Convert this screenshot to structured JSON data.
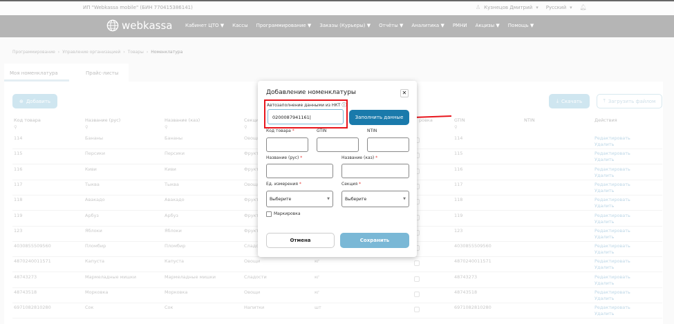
{
  "topbar": {
    "org": "ИП \"Webkassa mobile\" (БИН 770415386141)",
    "user": "Кузнецов Дмитрий",
    "language": "Русский"
  },
  "nav": {
    "logo": "webkassa",
    "items": [
      "Кабинет ЦТО ▼",
      "Кассы",
      "Программирование ▼",
      "Заказы (Курьеры) ▼",
      "Отчёты ▼",
      "Аналитика ▼",
      "РМНИ",
      "Акцизы ▼",
      "Помощь ▼"
    ]
  },
  "breadcrumb": [
    "Программирование",
    "Управление организацией",
    "Товары",
    "Номенклатура"
  ],
  "tabs": [
    "Моя номенклатура",
    "Прайс-листы"
  ],
  "toolbar": {
    "add": "Добавить",
    "download": "Скачать",
    "upload": "Загрузить файлом"
  },
  "table": {
    "headers": [
      "Код товара",
      "Название (рус)",
      "Название (каз)",
      "Секция",
      "ровка",
      "GTIN",
      "NTIN",
      "Действия"
    ],
    "edit": "Редактировать",
    "delete": "Удалить",
    "rows": [
      {
        "code": "114",
        "ru": "Бананы",
        "kz": "Бананы",
        "section": "Овощи",
        "unit": "",
        "gtin": "114"
      },
      {
        "code": "115",
        "ru": "Персики",
        "kz": "Персики",
        "section": "Фрукты",
        "unit": "",
        "gtin": "115"
      },
      {
        "code": "116",
        "ru": "Киви",
        "kz": "Киви",
        "section": "Фрукты",
        "unit": "",
        "gtin": "116"
      },
      {
        "code": "117",
        "ru": "Тыква",
        "kz": "Тыква",
        "section": "Овощи",
        "unit": "",
        "gtin": "117"
      },
      {
        "code": "118",
        "ru": "Авакадо",
        "kz": "Авакадо",
        "section": "Фрукты",
        "unit": "",
        "gtin": "118"
      },
      {
        "code": "119",
        "ru": "Арбуз",
        "kz": "Арбуз",
        "section": "Фрукты",
        "unit": "",
        "gtin": "119"
      },
      {
        "code": "123",
        "ru": "Яблоки",
        "kz": "Яблоки",
        "section": "Фрукты",
        "unit": "",
        "gtin": "123"
      },
      {
        "code": "4030855509560",
        "ru": "Пломбир",
        "kz": "Пломбир",
        "section": "Сладости",
        "unit": "",
        "gtin": "4030855509560"
      },
      {
        "code": "4870240011571",
        "ru": "Капуста",
        "kz": "Капуста",
        "section": "Овощи",
        "unit": "кг",
        "gtin": "4870240011571"
      },
      {
        "code": "48743273",
        "ru": "Мармеладные мишки",
        "kz": "Мармеладные мишки",
        "section": "Сладости",
        "unit": "кг",
        "gtin": "48743273"
      },
      {
        "code": "48743518",
        "ru": "Морковка",
        "kz": "Морковка",
        "section": "Овощи",
        "unit": "кг",
        "gtin": "48743518"
      },
      {
        "code": "6971082810280",
        "ru": "Сок",
        "kz": "Сок",
        "section": "Напитки",
        "unit": "шт",
        "gtin": "6971082810280"
      }
    ]
  },
  "modal": {
    "title": "Добавление номенклатуры",
    "autofill_label": "Автозаполнение данными из НКТ",
    "autofill_value": "0200087941161",
    "fill_button": "Заполнить данные",
    "code_label": "Код товара",
    "gtin_label": "GTIN",
    "ntin_label": "NTIN",
    "name_ru_label": "Название (рус)",
    "name_kz_label": "Название (каз)",
    "unit_label": "Ед. измерения",
    "section_label": "Секция",
    "unit_value": "Выберите",
    "section_value": "Выберите",
    "marking_label": "Маркировка",
    "required": "*",
    "cancel": "Отмена",
    "save": "Сохранить"
  },
  "colors": {
    "primary": "#1a7aab",
    "highlight": "#e8141b",
    "save_disabled": "#7ab8d6"
  }
}
